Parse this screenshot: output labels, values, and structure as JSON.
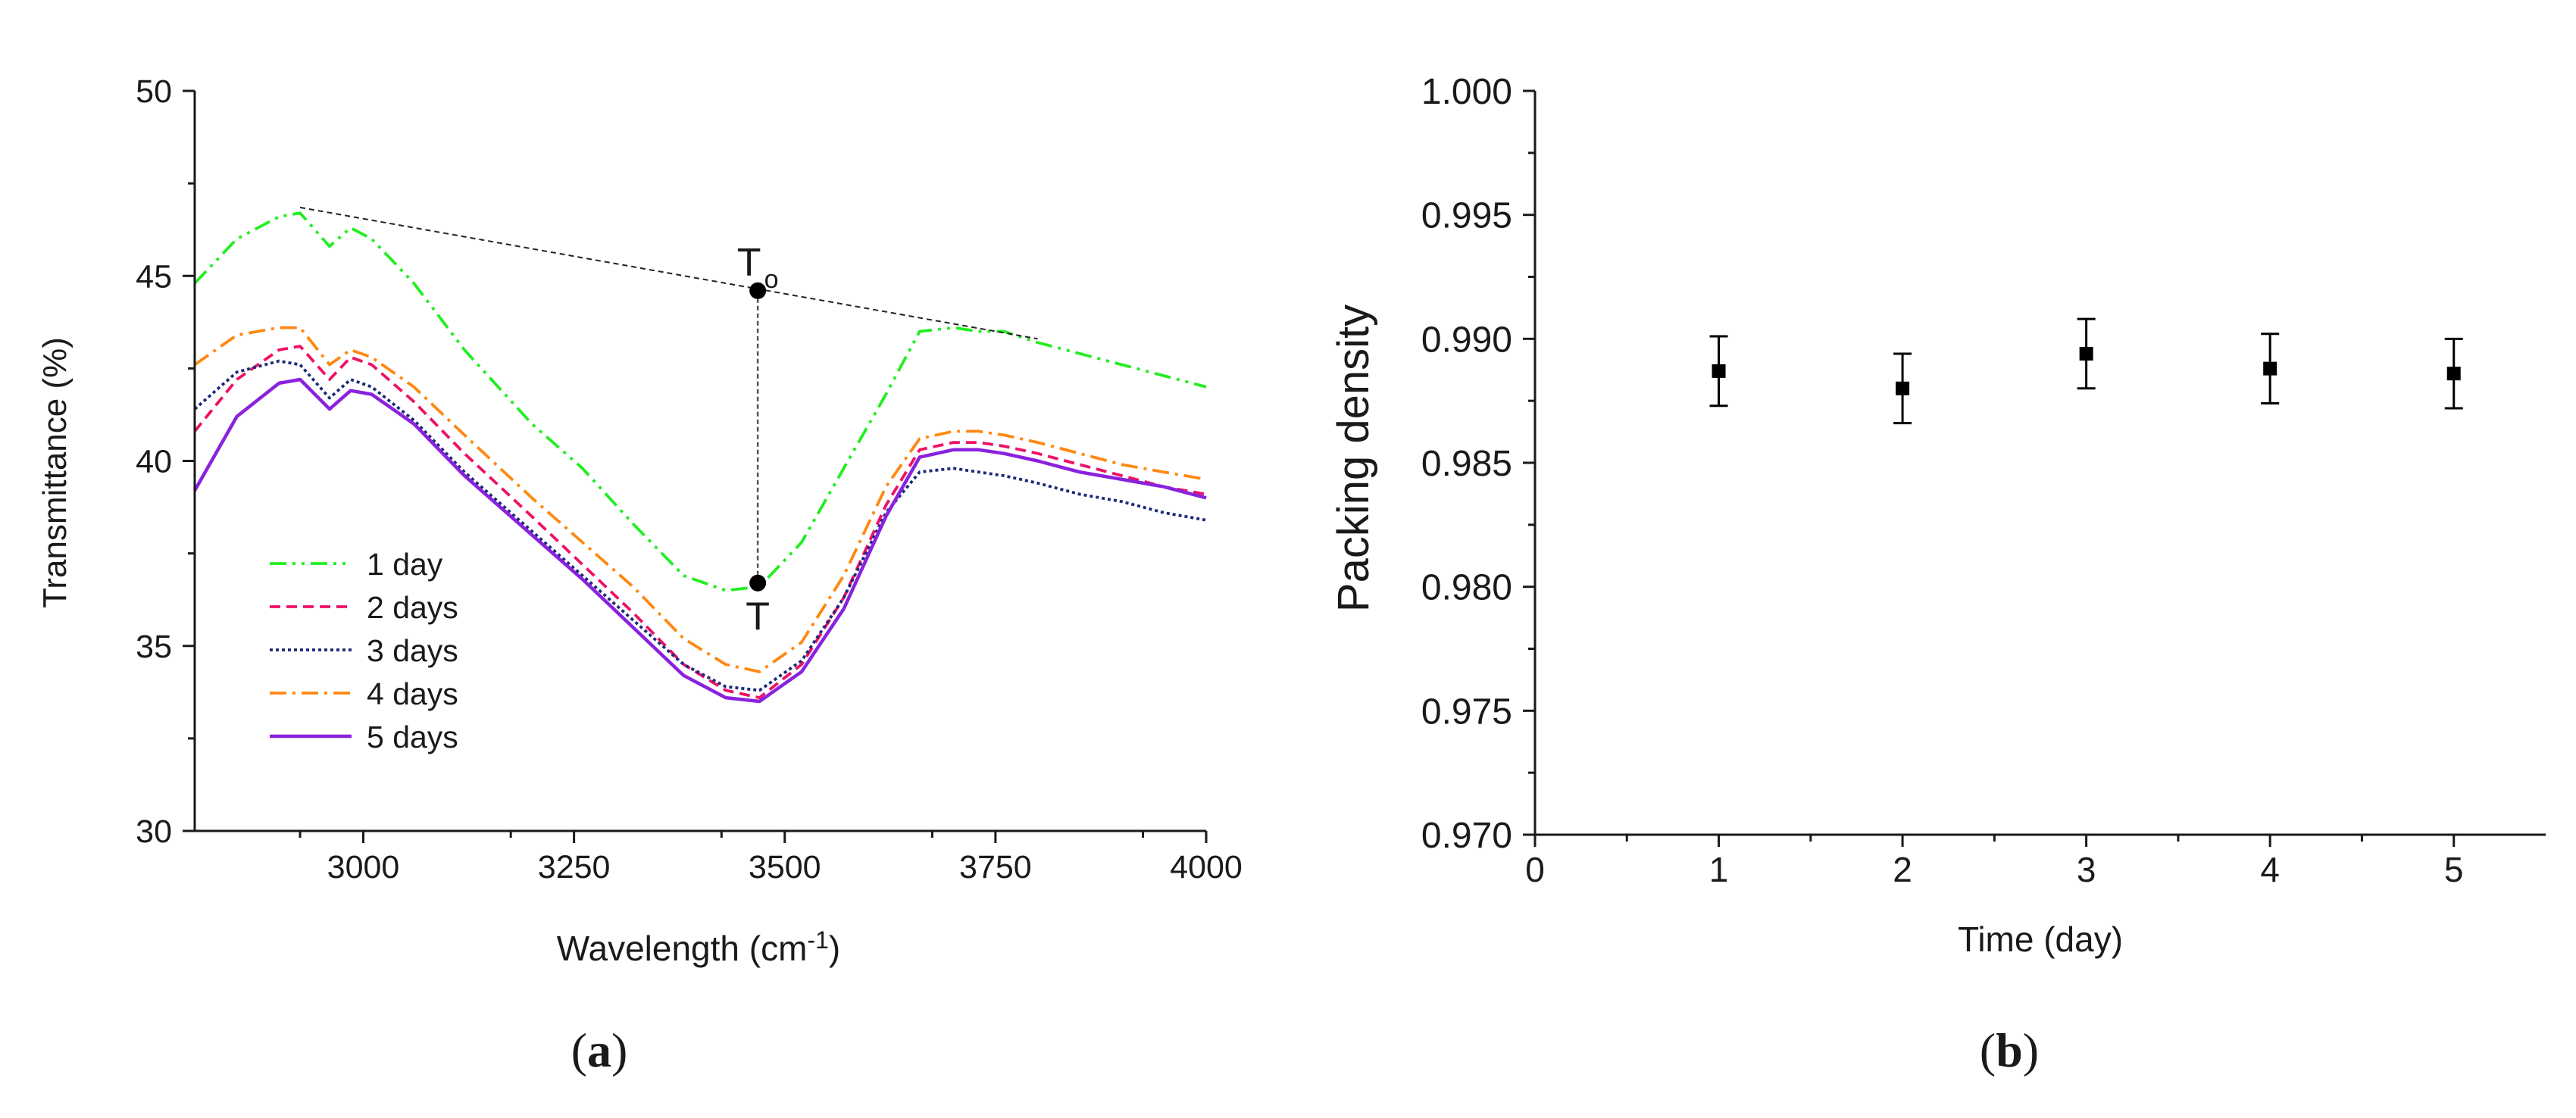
{
  "chart_data": [
    {
      "type": "line",
      "panel": "a",
      "panel_label": {
        "open": "(",
        "letter": "a",
        "close": ")"
      },
      "xlabel": "Wavelength (cm",
      "xlabel_sup": "-1",
      "xlabel_close": ")",
      "ylabel": "Transmittance (%)",
      "xlim": [
        2800,
        4000
      ],
      "ylim": [
        30,
        50
      ],
      "xticks": [
        3000,
        3250,
        3500,
        3750,
        4000
      ],
      "yticks": [
        30,
        35,
        40,
        45,
        50
      ],
      "legend_position": "bottom-left",
      "series": [
        {
          "name": "1 day",
          "color": "#22ee22",
          "style": "dashdot-dot",
          "x": [
            2800,
            2850,
            2900,
            2925,
            2960,
            2985,
            3010,
            3060,
            3120,
            3200,
            3260,
            3320,
            3380,
            3430,
            3470,
            3520,
            3570,
            3620,
            3660,
            3700,
            3730,
            3760,
            3800,
            3850,
            3900,
            3950,
            4000
          ],
          "y": [
            44.8,
            46.0,
            46.6,
            46.7,
            45.8,
            46.3,
            46.0,
            44.8,
            43.0,
            41.0,
            39.8,
            38.3,
            36.9,
            36.5,
            36.6,
            37.8,
            39.8,
            41.8,
            43.5,
            43.6,
            43.5,
            43.5,
            43.2,
            42.9,
            42.6,
            42.3,
            42.0
          ]
        },
        {
          "name": "2 days",
          "color": "#ee1166",
          "style": "dashed",
          "x": [
            2800,
            2850,
            2900,
            2925,
            2960,
            2985,
            3010,
            3060,
            3120,
            3200,
            3260,
            3320,
            3380,
            3430,
            3470,
            3520,
            3570,
            3620,
            3660,
            3700,
            3730,
            3760,
            3800,
            3850,
            3900,
            3950,
            4000
          ],
          "y": [
            40.8,
            42.2,
            43.0,
            43.1,
            42.2,
            42.8,
            42.6,
            41.6,
            40.2,
            38.5,
            37.2,
            35.9,
            34.5,
            33.8,
            33.6,
            34.5,
            36.3,
            38.8,
            40.3,
            40.5,
            40.5,
            40.4,
            40.2,
            39.9,
            39.6,
            39.3,
            39.1
          ]
        },
        {
          "name": "3 days",
          "color": "#1a2a7a",
          "style": "dotted",
          "x": [
            2800,
            2850,
            2900,
            2925,
            2960,
            2985,
            3010,
            3060,
            3120,
            3200,
            3260,
            3320,
            3380,
            3430,
            3470,
            3520,
            3570,
            3620,
            3660,
            3700,
            3730,
            3760,
            3800,
            3850,
            3900,
            3950,
            4000
          ],
          "y": [
            41.4,
            42.4,
            42.7,
            42.6,
            41.7,
            42.2,
            42.0,
            41.1,
            39.7,
            38.1,
            36.9,
            35.7,
            34.5,
            33.9,
            33.8,
            34.6,
            36.3,
            38.6,
            39.7,
            39.8,
            39.7,
            39.6,
            39.4,
            39.1,
            38.9,
            38.6,
            38.4
          ]
        },
        {
          "name": "4 days",
          "color": "#ff8811",
          "style": "dashdot",
          "x": [
            2800,
            2850,
            2900,
            2925,
            2960,
            2985,
            3010,
            3060,
            3120,
            3200,
            3260,
            3320,
            3380,
            3430,
            3470,
            3520,
            3570,
            3620,
            3660,
            3700,
            3730,
            3760,
            3800,
            3850,
            3900,
            3950,
            4000
          ],
          "y": [
            42.6,
            43.4,
            43.6,
            43.6,
            42.6,
            43.0,
            42.8,
            42.0,
            40.7,
            39.0,
            37.8,
            36.6,
            35.2,
            34.5,
            34.3,
            35.1,
            36.9,
            39.3,
            40.6,
            40.8,
            40.8,
            40.7,
            40.5,
            40.2,
            39.9,
            39.7,
            39.5
          ]
        },
        {
          "name": "5 days",
          "color": "#8a22dd",
          "style": "solid",
          "x": [
            2800,
            2850,
            2900,
            2925,
            2960,
            2985,
            3010,
            3060,
            3120,
            3200,
            3260,
            3320,
            3380,
            3430,
            3470,
            3520,
            3570,
            3620,
            3660,
            3700,
            3730,
            3760,
            3800,
            3850,
            3900,
            3950,
            4000
          ],
          "y": [
            39.2,
            41.2,
            42.1,
            42.2,
            41.4,
            41.9,
            41.8,
            41.0,
            39.6,
            38.0,
            36.8,
            35.5,
            34.2,
            33.6,
            33.5,
            34.3,
            36.0,
            38.5,
            40.1,
            40.3,
            40.3,
            40.2,
            40.0,
            39.7,
            39.5,
            39.3,
            39.0
          ]
        }
      ],
      "annotations": {
        "baseline": {
          "x": [
            2925,
            3800
          ],
          "y": [
            46.85,
            43.3
          ]
        },
        "t0_point": {
          "x": 3468,
          "y": 44.6,
          "label": "T",
          "subscript": "o"
        },
        "t_point": {
          "x": 3468,
          "y": 36.7,
          "label": "T"
        }
      }
    },
    {
      "type": "scatter",
      "panel": "b",
      "panel_label": {
        "open": "(",
        "letter": "b",
        "close": ")"
      },
      "xlabel": "Time (day)",
      "ylabel": "Packing density",
      "xlim": [
        0,
        5.5
      ],
      "ylim": [
        0.97,
        1.0
      ],
      "xticks": [
        0,
        1,
        2,
        3,
        4,
        5
      ],
      "yticks": [
        "0.970",
        "0.975",
        "0.980",
        "0.985",
        "0.990",
        "0.995",
        "1.000"
      ],
      "series": [
        {
          "name": "Packing density",
          "color": "#000000",
          "x": [
            1,
            2,
            3,
            4,
            5
          ],
          "y": [
            0.9887,
            0.988,
            0.9894,
            0.9888,
            0.9886
          ],
          "error": [
            0.0014,
            0.0014,
            0.0014,
            0.0014,
            0.0014
          ]
        }
      ]
    }
  ]
}
